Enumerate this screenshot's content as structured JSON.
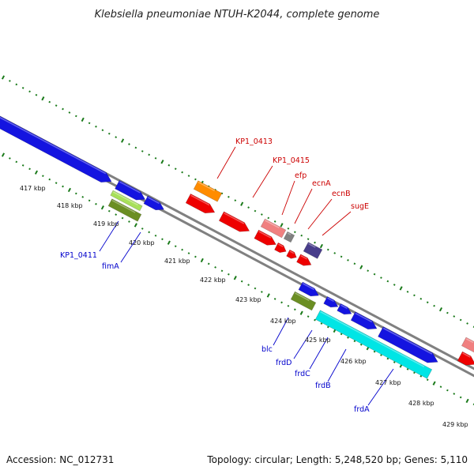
{
  "title": "Klebsiella pneumoniae NTUH-K2044, complete genome",
  "footer": {
    "accession": "Accession: NC_012731",
    "summary": "Topology: circular; Length: 5,248,520 bp; Genes: 5,110"
  },
  "colors": {
    "backbone": "#808080",
    "tick": "#1a7a1a",
    "label_forward": "#cc0000",
    "label_reverse": "#0000cc",
    "blue": "#1414e0",
    "cyan": "#00e5e5",
    "olive": "#6b8e23",
    "lime": "#a8e05a",
    "orange": "#ff8c00",
    "red": "#ee0000",
    "pink": "#f08080",
    "gray": "#808080",
    "slate": "#483d8b"
  },
  "kbp_ticks": [
    "417 kbp",
    "418 kbp",
    "419 kbp",
    "420 kbp",
    "421 kbp",
    "422 kbp",
    "423 kbp",
    "424 kbp",
    "425 kbp",
    "426 kbp",
    "427 kbp",
    "428 kbp",
    "429 kbp"
  ],
  "labels_top": [
    "KP1_0413",
    "KP1_0415",
    "efp",
    "ecnA",
    "ecnB",
    "sugE"
  ],
  "labels_bottom": [
    "KP1_0411",
    "fimA",
    "blc",
    "frdD",
    "frdC",
    "frdB",
    "frdA"
  ]
}
